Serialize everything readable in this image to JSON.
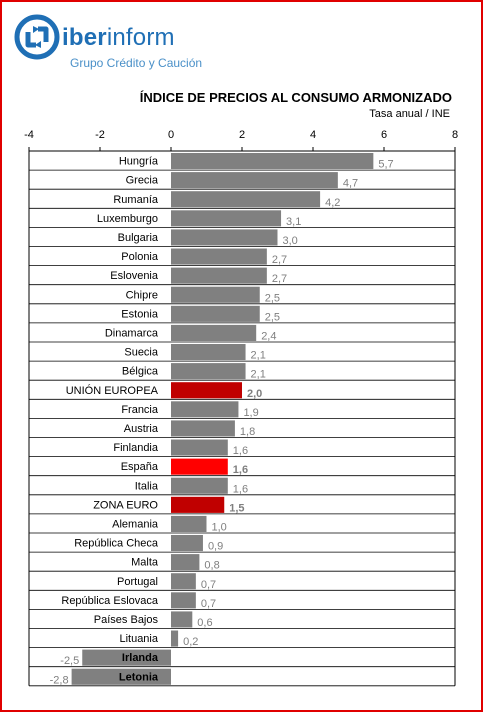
{
  "header": {
    "brand_bold": "iber",
    "brand_rest": "inform",
    "tagline": "Grupo Crédito y Caución"
  },
  "colors": {
    "frame": "#e00000",
    "brand": "#1f6fb5",
    "bar_default": "#808080",
    "bar_highlight_dark": "#c00000",
    "bar_highlight_bright": "#ff0000",
    "label_default": "#7f7f7f",
    "label_highlight": "#c00000"
  },
  "chart_data": {
    "type": "bar",
    "orientation": "horizontal",
    "title": "ÍNDICE DE PRECIOS AL CONSUMO ARMONIZADO",
    "subtitle": "Tasa anual / INE",
    "xlim": [
      -4,
      8
    ],
    "x_ticks": [
      "-4",
      "-2",
      "0",
      "2",
      "4",
      "6",
      "8"
    ],
    "gridlines": "horizontal separators between rows",
    "categories": [
      "Hungría",
      "Grecia",
      "Rumanía",
      "Luxemburgo",
      "Bulgaria",
      "Polonia",
      "Eslovenia",
      "Chipre",
      "Estonia",
      "Dinamarca",
      "Suecia",
      "Bélgica",
      "UNIÓN EUROPEA",
      "Francia",
      "Austria",
      "Finlandia",
      "España",
      "Italia",
      "ZONA EURO",
      "Alemania",
      "República Checa",
      "Malta",
      "Portugal",
      "República Eslovaca",
      "Países Bajos",
      "Lituania",
      "Irlanda",
      "Letonia"
    ],
    "values": [
      5.7,
      4.7,
      4.2,
      3.1,
      3.0,
      2.7,
      2.7,
      2.5,
      2.5,
      2.4,
      2.1,
      2.1,
      2.0,
      1.9,
      1.8,
      1.6,
      1.6,
      1.6,
      1.5,
      1.0,
      0.9,
      0.8,
      0.7,
      0.7,
      0.6,
      0.2,
      -2.5,
      -2.8
    ],
    "value_labels": [
      "5,7",
      "4,7",
      "4,2",
      "3,1",
      "3,0",
      "2,7",
      "2,7",
      "2,5",
      "2,5",
      "2,4",
      "2,1",
      "2,1",
      "2,0",
      "1,9",
      "1,8",
      "1,6",
      "1,6",
      "1,6",
      "1,5",
      "1,0",
      "0,9",
      "0,8",
      "0,7",
      "0,7",
      "0,6",
      "0,2",
      "-2,5",
      "-2,8"
    ],
    "highlight": {
      "UNIÓN EUROPEA": "dark",
      "España": "bright",
      "ZONA EURO": "dark"
    }
  }
}
